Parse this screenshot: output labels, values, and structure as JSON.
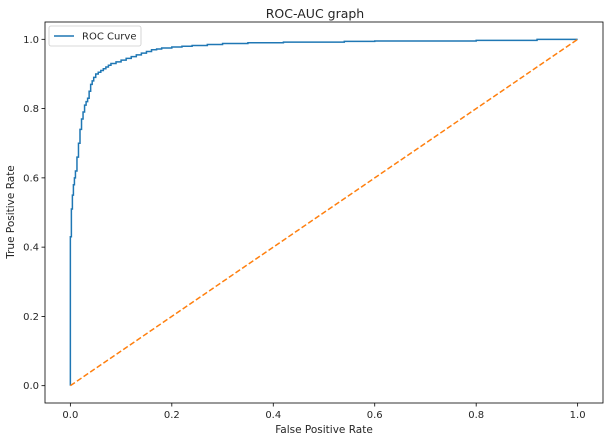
{
  "chart_data": {
    "type": "line",
    "title": "ROC-AUC graph",
    "xlabel": "False Positive Rate",
    "ylabel": "True Positive Rate",
    "xlim": [
      -0.05,
      1.05
    ],
    "ylim": [
      -0.05,
      1.05
    ],
    "xticks": [
      0.0,
      0.2,
      0.4,
      0.6,
      0.8,
      1.0
    ],
    "yticks": [
      0.0,
      0.2,
      0.4,
      0.6,
      0.8,
      1.0
    ],
    "xtick_labels": [
      "0.0",
      "0.2",
      "0.4",
      "0.6",
      "0.8",
      "1.0"
    ],
    "ytick_labels": [
      "0.0",
      "0.2",
      "0.4",
      "0.6",
      "0.8",
      "1.0"
    ],
    "legend_position": "upper-left",
    "grid": false,
    "series": [
      {
        "name": "ROC Curve",
        "color": "#1f77b4",
        "style": "solid",
        "x": [
          0.0,
          0.0,
          0.002,
          0.002,
          0.004,
          0.004,
          0.006,
          0.006,
          0.008,
          0.008,
          0.01,
          0.01,
          0.013,
          0.013,
          0.016,
          0.016,
          0.019,
          0.019,
          0.022,
          0.022,
          0.025,
          0.025,
          0.028,
          0.028,
          0.031,
          0.031,
          0.034,
          0.034,
          0.037,
          0.037,
          0.04,
          0.04,
          0.043,
          0.043,
          0.046,
          0.046,
          0.05,
          0.05,
          0.055,
          0.055,
          0.06,
          0.06,
          0.065,
          0.065,
          0.07,
          0.07,
          0.075,
          0.075,
          0.08,
          0.08,
          0.09,
          0.09,
          0.1,
          0.1,
          0.11,
          0.11,
          0.12,
          0.12,
          0.13,
          0.13,
          0.14,
          0.14,
          0.15,
          0.15,
          0.16,
          0.16,
          0.17,
          0.17,
          0.18,
          0.18,
          0.2,
          0.2,
          0.22,
          0.22,
          0.24,
          0.24,
          0.27,
          0.27,
          0.3,
          0.3,
          0.35,
          0.35,
          0.42,
          0.42,
          0.54,
          0.54,
          0.6,
          0.6,
          0.8,
          0.8,
          0.92,
          0.92,
          1.0
        ],
        "y": [
          0.0,
          0.43,
          0.43,
          0.51,
          0.51,
          0.55,
          0.55,
          0.58,
          0.58,
          0.6,
          0.6,
          0.62,
          0.62,
          0.66,
          0.66,
          0.7,
          0.7,
          0.74,
          0.74,
          0.77,
          0.77,
          0.79,
          0.79,
          0.81,
          0.81,
          0.82,
          0.82,
          0.83,
          0.83,
          0.85,
          0.85,
          0.87,
          0.87,
          0.88,
          0.88,
          0.89,
          0.89,
          0.9,
          0.9,
          0.905,
          0.905,
          0.91,
          0.91,
          0.915,
          0.915,
          0.92,
          0.92,
          0.925,
          0.925,
          0.93,
          0.93,
          0.935,
          0.935,
          0.94,
          0.94,
          0.945,
          0.945,
          0.95,
          0.95,
          0.955,
          0.955,
          0.96,
          0.96,
          0.965,
          0.965,
          0.97,
          0.97,
          0.972,
          0.972,
          0.975,
          0.975,
          0.978,
          0.978,
          0.98,
          0.98,
          0.982,
          0.982,
          0.985,
          0.985,
          0.988,
          0.988,
          0.99,
          0.99,
          0.992,
          0.992,
          0.994,
          0.994,
          0.995,
          0.995,
          0.997,
          0.997,
          1.0,
          1.0
        ]
      },
      {
        "name": "",
        "color": "#ff7f0e",
        "style": "dashed",
        "x": [
          0.0,
          1.0
        ],
        "y": [
          0.0,
          1.0
        ]
      }
    ]
  }
}
